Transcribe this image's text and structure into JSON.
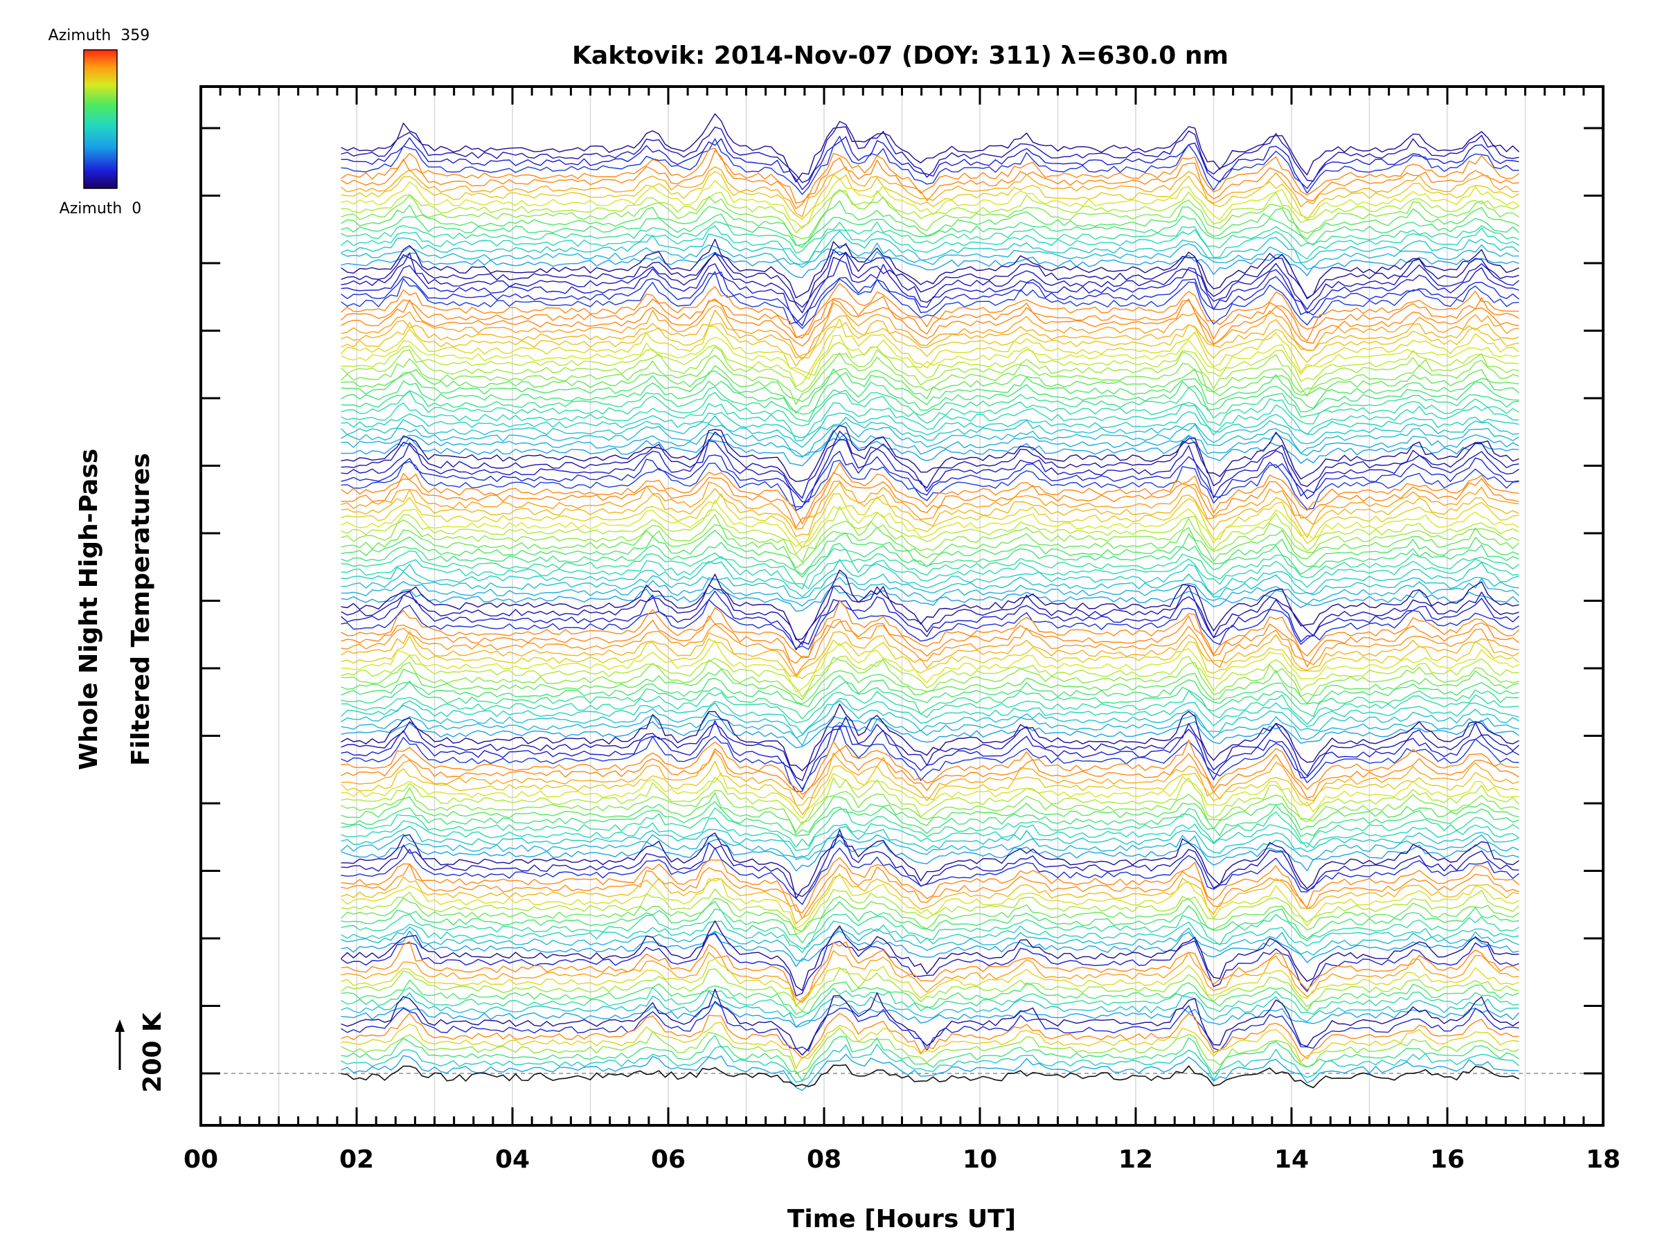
{
  "chart_data": {
    "type": "line",
    "title": "Kaktovik: 2014-Nov-07 (DOY: 311) λ=630.0 nm",
    "xlabel": "Time [Hours UT]",
    "ylabel_line1": "Whole Night High-Pass",
    "ylabel_line2": "Filtered Temperatures",
    "scale_label": "200 K",
    "x_ticks": [
      "00",
      "02",
      "04",
      "06",
      "08",
      "10",
      "12",
      "14",
      "16",
      "18"
    ],
    "xlim": [
      0,
      18
    ],
    "x_data_range": [
      1.8,
      16.95
    ],
    "grid": "vertical hourly",
    "colorbar": {
      "top_label": "Azimuth  359",
      "bottom_label": "Azimuth  0",
      "range": [
        0,
        359
      ],
      "colormap": "rainbow"
    },
    "series_groups": [
      {
        "name": "",
        "traces": 18
      },
      {
        "name": "",
        "traces": 28
      },
      {
        "name": "",
        "traces": 22
      },
      {
        "name": "",
        "traces": 20
      },
      {
        "name": "",
        "traces": 18
      },
      {
        "name": "",
        "traces": 14
      },
      {
        "name": "",
        "traces": 10
      },
      {
        "name": "",
        "traces": 8
      }
    ]
  }
}
